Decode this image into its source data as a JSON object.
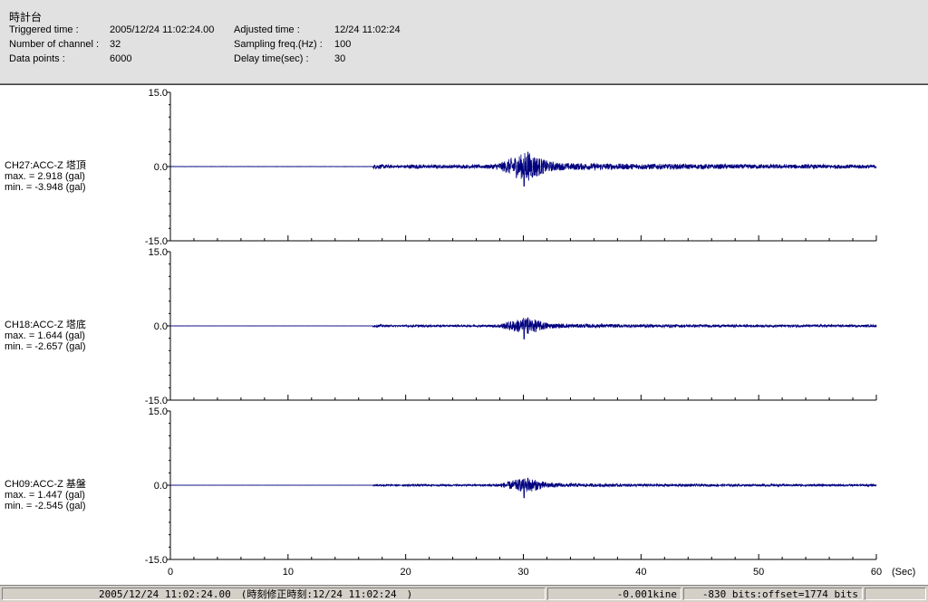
{
  "header": {
    "title": "時計台",
    "fields": [
      {
        "label": "Triggered time :",
        "value": "2005/12/24 11:02:24.00"
      },
      {
        "label": "Number of channel :",
        "value": "32"
      },
      {
        "label": "Data points :",
        "value": "6000"
      },
      {
        "label": "Adjusted time :",
        "value": "12/24 11:02:24"
      },
      {
        "label": "Sampling freq.(Hz) :",
        "value": "100"
      },
      {
        "label": "Delay time(sec) :",
        "value": "30"
      }
    ]
  },
  "chart_data": [
    {
      "type": "line",
      "series": [
        {
          "name": "CH27:ACC-Z 塔頂"
        }
      ],
      "stats": {
        "max": "max. = 2.918 (gal)",
        "min": "min. = -3.948 (gal)"
      },
      "y_ticks": [
        "15.0",
        "0.0",
        "-15.0"
      ],
      "ylim": [
        -15,
        15
      ],
      "xlim": [
        0,
        60
      ],
      "max": 2.918,
      "min": -3.948,
      "color": "#00007f"
    },
    {
      "type": "line",
      "series": [
        {
          "name": "CH18:ACC-Z 塔底"
        }
      ],
      "stats": {
        "max": "max. = 1.644 (gal)",
        "min": "min. = -2.657 (gal)"
      },
      "y_ticks": [
        "15.0",
        "0.0",
        "-15.0"
      ],
      "ylim": [
        -15,
        15
      ],
      "xlim": [
        0,
        60
      ],
      "max": 1.644,
      "min": -2.657,
      "color": "#00007f"
    },
    {
      "type": "line",
      "series": [
        {
          "name": "CH09:ACC-Z 基盤"
        }
      ],
      "stats": {
        "max": "max. = 1.447 (gal)",
        "min": "min. = -2.545 (gal)"
      },
      "y_ticks": [
        "15.0",
        "0.0",
        "-15.0"
      ],
      "ylim": [
        -15,
        15
      ],
      "xlim": [
        0,
        60
      ],
      "max": 1.447,
      "min": -2.545,
      "color": "#00007f"
    }
  ],
  "x_axis": {
    "ticks": [
      "0",
      "10",
      "20",
      "30",
      "40",
      "50",
      "60"
    ],
    "unit": "(Sec)"
  },
  "statusbar": {
    "time": "2005/12/24 11:02:24.00　(時刻修正時刻:12/24 11:02:24　)",
    "velocity": "-0.001kine",
    "bits": "-830 bits:offset=1774 bits",
    "extra": ""
  }
}
